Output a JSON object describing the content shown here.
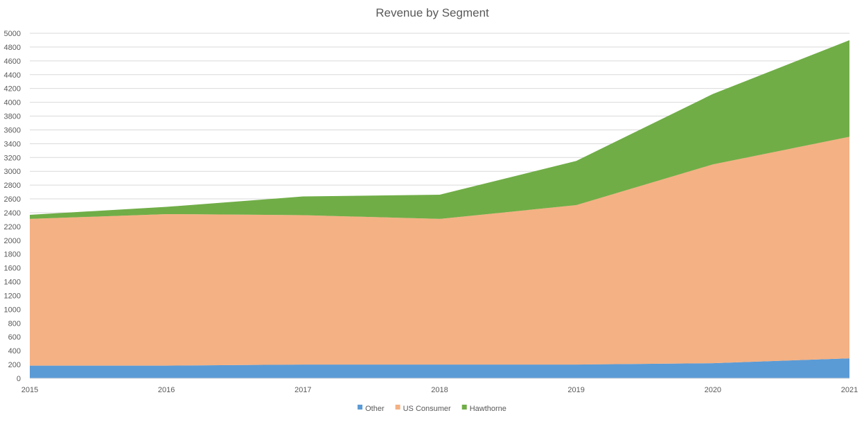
{
  "chart_data": {
    "type": "area",
    "stacked": true,
    "title": "Revenue by Segment",
    "xlabel": "",
    "ylabel": "",
    "x": [
      "2015",
      "2016",
      "2017",
      "2018",
      "2019",
      "2020",
      "2021"
    ],
    "ylim": [
      0,
      5000
    ],
    "ytick_step": 200,
    "yticks": [
      "0",
      "200",
      "400",
      "600",
      "800",
      "1000",
      "1200",
      "1400",
      "1600",
      "1800",
      "2000",
      "2200",
      "2400",
      "2600",
      "2800",
      "3000",
      "3200",
      "3400",
      "3600",
      "3800",
      "4000",
      "4200",
      "4400",
      "4600",
      "4800",
      "5000"
    ],
    "grid": true,
    "legend": "bottom",
    "series": [
      {
        "name": "Other",
        "color": "#5b9bd5",
        "values": [
          185,
          185,
          200,
          200,
          200,
          220,
          290
        ]
      },
      {
        "name": "US Consumer",
        "color": "#f4b183",
        "values": [
          2125,
          2195,
          2165,
          2110,
          2310,
          2880,
          3210
        ]
      },
      {
        "name": "Hawthorne",
        "color": "#70ad47",
        "values": [
          60,
          105,
          270,
          350,
          640,
          1020,
          1400
        ]
      }
    ]
  }
}
